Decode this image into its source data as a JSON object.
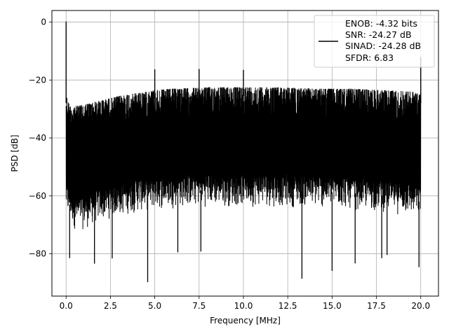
{
  "chart_data": {
    "type": "line",
    "title": "",
    "xlabel": "Frequency [MHz]",
    "ylabel": "PSD [dB]",
    "xlim": [
      -0.8,
      21.0
    ],
    "ylim": [
      -94.6,
      4.0
    ],
    "xticks": [
      0.0,
      2.5,
      5.0,
      7.5,
      10.0,
      12.5,
      15.0,
      17.5,
      20.0
    ],
    "xtick_labels": [
      "0.0",
      "2.5",
      "5.0",
      "7.5",
      "10.0",
      "12.5",
      "15.0",
      "17.5",
      "20.0"
    ],
    "yticks": [
      0,
      -20,
      -40,
      -60,
      -80
    ],
    "ytick_labels": [
      "0",
      "−20",
      "−40",
      "−60",
      "−80"
    ],
    "grid": true,
    "legend": {
      "placement": "top-right",
      "entries": [
        "ENOB: -4.32 bits",
        "SNR: -24.27 dB",
        "SINAD: -24.28 dB",
        "SFDR: 6.83"
      ]
    },
    "series": [
      {
        "color": "#000000",
        "upper_envelope": {
          "x": [
            0.0,
            0.2,
            0.5,
            1.0,
            2.0,
            3.0,
            4.0,
            5.0,
            6.0,
            8.0,
            10.0,
            12.0,
            14.0,
            16.0,
            18.0,
            19.5,
            20.0
          ],
          "y": [
            -25,
            -29,
            -29,
            -28.5,
            -27,
            -25.5,
            -24.5,
            -23.5,
            -23,
            -22.5,
            -22.5,
            -22.5,
            -23,
            -23,
            -23.5,
            -24,
            -25
          ]
        },
        "lower_envelope": {
          "x": [
            0.0,
            0.5,
            1.0,
            2.0,
            4.0,
            6.0,
            8.0,
            10.0,
            12.0,
            14.0,
            16.0,
            18.0,
            20.0
          ],
          "y": [
            -65,
            -70,
            -70,
            -67,
            -64,
            -62.5,
            -62,
            -62,
            -62,
            -62.5,
            -63,
            -64,
            -66
          ]
        },
        "spikes": [
          {
            "x": 0.0,
            "y": 0.2
          },
          {
            "x": 5.0,
            "y": -16.3
          },
          {
            "x": 7.5,
            "y": -16.2
          },
          {
            "x": 10.0,
            "y": -16.5
          },
          {
            "x": 20.0,
            "y": -12.0
          }
        ],
        "dips": [
          {
            "x": 0.2,
            "y": -81.5
          },
          {
            "x": 1.6,
            "y": -83.4
          },
          {
            "x": 2.6,
            "y": -81.6
          },
          {
            "x": 4.6,
            "y": -89.8
          },
          {
            "x": 6.3,
            "y": -79.5
          },
          {
            "x": 7.6,
            "y": -79.2
          },
          {
            "x": 13.3,
            "y": -88.6
          },
          {
            "x": 15.0,
            "y": -85.9
          },
          {
            "x": 16.3,
            "y": -83.3
          },
          {
            "x": 17.8,
            "y": -81.5
          },
          {
            "x": 18.1,
            "y": -80.4
          },
          {
            "x": 19.9,
            "y": -84.6
          }
        ]
      }
    ]
  }
}
